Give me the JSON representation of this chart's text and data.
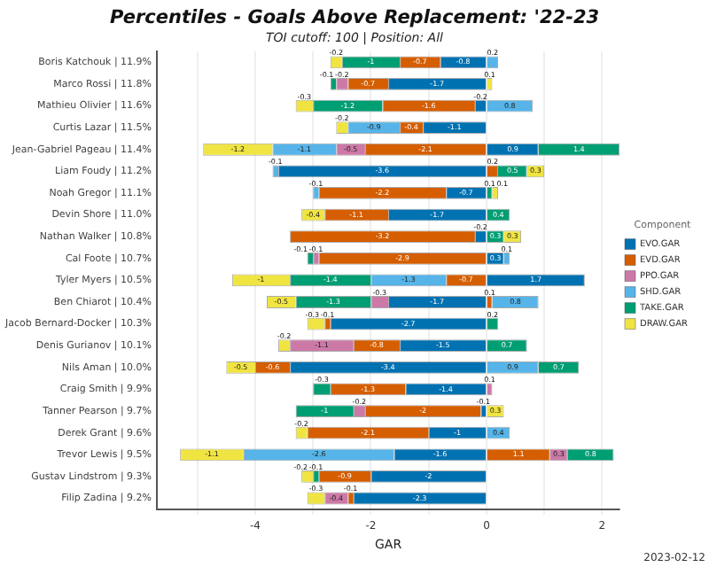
{
  "chart_data": {
    "type": "bar",
    "orientation": "horizontal",
    "stacked": true,
    "title": "Percentiles - Goals Above Replacement: '22-23",
    "subtitle": "TOI cutoff: 100 | Position: All",
    "xlabel": "GAR",
    "legend_title": "Component",
    "legend": "right",
    "grid": "x",
    "data_labels": true,
    "annotations": [
      "2023-02-12"
    ],
    "xlim": [
      -5.7,
      2.3
    ],
    "xticks": [
      {
        "value": -5,
        "label": null
      },
      -4,
      {
        "value": -3,
        "label": null
      },
      -2,
      {
        "value": -1,
        "label": null
      },
      0,
      {
        "value": 1,
        "label": null
      },
      2
    ],
    "categories": [
      "Boris Katchouk | 11.9%",
      "Marco Rossi | 11.8%",
      "Mathieu Olivier | 11.6%",
      "Curtis Lazar | 11.5%",
      "Jean-Gabriel Pageau | 11.4%",
      "Liam Foudy | 11.2%",
      "Noah Gregor | 11.1%",
      "Devin Shore | 11.0%",
      "Nathan Walker | 10.8%",
      "Cal Foote | 10.7%",
      "Tyler Myers | 10.5%",
      "Ben Chiarot | 10.4%",
      "Jacob Bernard-Docker | 10.3%",
      "Denis Gurianov | 10.1%",
      "Nils Aman | 10.0%",
      "Craig Smith | 9.9%",
      "Tanner Pearson | 9.7%",
      "Derek Grant | 9.6%",
      "Trevor Lewis | 9.5%",
      "Gustav Lindstrom | 9.3%",
      "Filip Zadina | 9.2%"
    ],
    "series": [
      {
        "name": "EVO.GAR",
        "color": "#0072b2",
        "values": [
          -0.8,
          -1.7,
          -0.2,
          -1.1,
          0.9,
          -3.6,
          -0.7,
          -1.7,
          -0.2,
          0.3,
          1.7,
          -1.7,
          -2.7,
          -1.5,
          -3.4,
          -1.4,
          -0.1,
          -1.0,
          -1.6,
          -2.0,
          -2.3
        ]
      },
      {
        "name": "EVD.GAR",
        "color": "#d55e00",
        "values": [
          -0.7,
          -0.7,
          -1.6,
          -0.4,
          -2.1,
          0.2,
          -2.2,
          -1.1,
          -3.2,
          -2.9,
          -0.7,
          0.1,
          -0.1,
          -0.8,
          -0.6,
          -1.3,
          -2.0,
          -2.1,
          1.1,
          -0.9,
          -0.1
        ]
      },
      {
        "name": "PPO.GAR",
        "color": "#cc79a7",
        "values": [
          null,
          -0.2,
          null,
          null,
          -0.5,
          null,
          null,
          null,
          null,
          -0.1,
          null,
          -0.3,
          null,
          -1.1,
          null,
          0.1,
          -0.2,
          null,
          0.3,
          null,
          -0.4
        ]
      },
      {
        "name": "SHD.GAR",
        "color": "#56b4e9",
        "values": [
          0.2,
          null,
          0.8,
          -0.9,
          -1.1,
          -0.1,
          -0.1,
          null,
          null,
          0.1,
          -1.3,
          0.8,
          null,
          null,
          0.9,
          null,
          null,
          0.4,
          -2.6,
          null,
          null
        ]
      },
      {
        "name": "TAKE.GAR",
        "color": "#009e73",
        "values": [
          -1.0,
          -0.1,
          -1.2,
          null,
          1.4,
          0.5,
          0.1,
          0.4,
          0.3,
          -0.1,
          -1.4,
          -1.3,
          0.2,
          0.7,
          0.7,
          -0.3,
          -1.0,
          null,
          0.8,
          -0.1,
          null
        ]
      },
      {
        "name": "DRAW.GAR",
        "color": "#f0e442",
        "values": [
          -0.2,
          0.1,
          -0.3,
          -0.2,
          -1.2,
          0.3,
          0.1,
          -0.4,
          0.3,
          null,
          -1.0,
          -0.5,
          -0.3,
          -0.2,
          -0.5,
          null,
          0.3,
          -0.2,
          -1.1,
          -0.2,
          -0.3
        ]
      }
    ]
  }
}
